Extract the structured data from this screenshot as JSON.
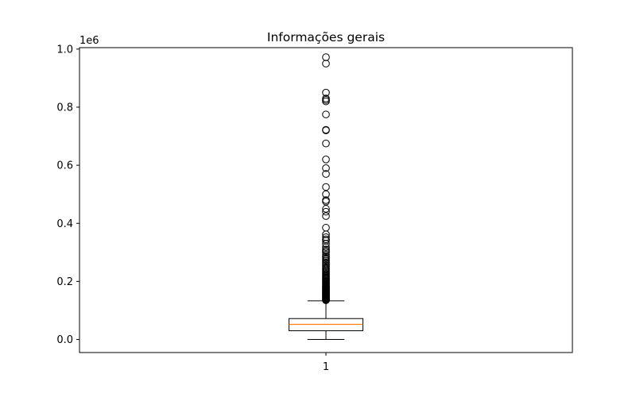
{
  "chart_data": {
    "type": "box",
    "title": "Informações gerais",
    "xlabel": "",
    "ylabel": "",
    "y_offset_label": "1e6",
    "categories": [
      "1"
    ],
    "ylim": [
      -45000,
      1005000
    ],
    "yticks": [
      {
        "value": 0,
        "label": "0.0"
      },
      {
        "value": 200000,
        "label": "0.2"
      },
      {
        "value": 400000,
        "label": "0.4"
      },
      {
        "value": 600000,
        "label": "0.6"
      },
      {
        "value": 800000,
        "label": "0.8"
      },
      {
        "value": 1000000,
        "label": "1.0"
      }
    ],
    "grid": false,
    "colors": {
      "median": "#ff7f0e",
      "box": "#000000",
      "flier": "#000000"
    },
    "boxes": [
      {
        "category": "1",
        "whisker_low": 0,
        "q1": 30000,
        "median": 52000,
        "q3": 72000,
        "whisker_high": 133000,
        "outliers": [
          135000,
          137000,
          139000,
          141000,
          143000,
          145000,
          147000,
          149000,
          151000,
          153000,
          155000,
          157000,
          159000,
          161000,
          163000,
          165000,
          167000,
          169000,
          171000,
          173000,
          175000,
          177000,
          179000,
          181000,
          183000,
          185000,
          188000,
          191000,
          194000,
          197000,
          200000,
          203000,
          206000,
          209000,
          212000,
          215000,
          218000,
          221000,
          225000,
          229000,
          233000,
          237000,
          241000,
          245000,
          250000,
          255000,
          260000,
          265000,
          270000,
          275000,
          280000,
          285000,
          292000,
          300000,
          305000,
          310000,
          318000,
          330000,
          340000,
          345000,
          352000,
          362000,
          385000,
          425000,
          440000,
          450000,
          475000,
          480000,
          500000,
          525000,
          570000,
          590000,
          620000,
          675000,
          720000,
          722000,
          775000,
          820000,
          825000,
          830000,
          850000,
          950000,
          972000
        ]
      }
    ]
  }
}
